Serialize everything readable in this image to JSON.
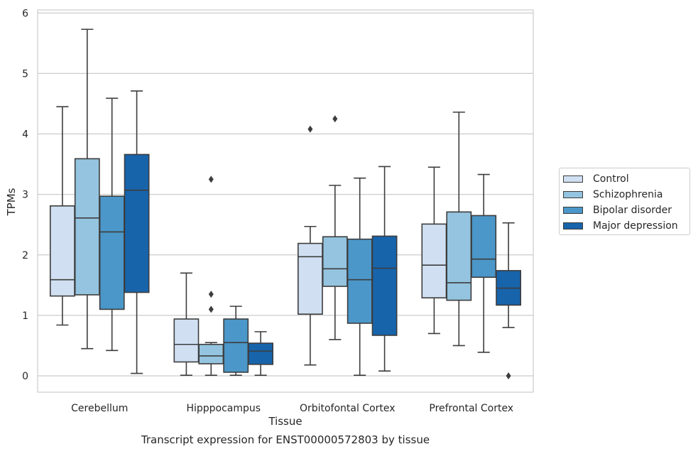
{
  "chart_data": {
    "type": "box",
    "caption": "Transcript expression for ENST00000572803 by tissue",
    "xlabel": "Tissue",
    "ylabel": "TPMs",
    "ylim": [
      -0.27,
      6.05
    ],
    "yticks": [
      0,
      1,
      2,
      3,
      4,
      5,
      6
    ],
    "grid": true,
    "legend_position": "right",
    "categories": [
      "Cerebellum",
      "Hipppocampus",
      "Orbitofontal Cortex",
      "Prefrontal Cortex"
    ],
    "series": [
      {
        "name": "Control",
        "color": "#d0e0f2",
        "boxes": [
          {
            "whisker_low": 0.84,
            "q1": 1.32,
            "median": 1.59,
            "q3": 2.81,
            "whisker_high": 4.45,
            "outliers": []
          },
          {
            "whisker_low": 0.01,
            "q1": 0.23,
            "median": 0.52,
            "q3": 0.94,
            "whisker_high": 1.7,
            "outliers": []
          },
          {
            "whisker_low": 0.18,
            "q1": 1.02,
            "median": 1.97,
            "q3": 2.19,
            "whisker_high": 2.47,
            "outliers": [
              4.08
            ]
          },
          {
            "whisker_low": 0.7,
            "q1": 1.29,
            "median": 1.83,
            "q3": 2.51,
            "whisker_high": 3.45,
            "outliers": []
          }
        ]
      },
      {
        "name": "Schizophrenia",
        "color": "#94c4df",
        "boxes": [
          {
            "whisker_low": 0.45,
            "q1": 1.34,
            "median": 2.61,
            "q3": 3.59,
            "whisker_high": 5.73,
            "outliers": []
          },
          {
            "whisker_low": 0.01,
            "q1": 0.2,
            "median": 0.33,
            "q3": 0.52,
            "whisker_high": 0.55,
            "outliers": [
              1.35,
              1.1,
              3.25
            ]
          },
          {
            "whisker_low": 0.6,
            "q1": 1.48,
            "median": 1.77,
            "q3": 2.3,
            "whisker_high": 3.15,
            "outliers": [
              4.25
            ]
          },
          {
            "whisker_low": 0.5,
            "q1": 1.25,
            "median": 1.54,
            "q3": 2.71,
            "whisker_high": 4.36,
            "outliers": []
          }
        ]
      },
      {
        "name": "Bipolar disorder",
        "color": "#4b97c9",
        "boxes": [
          {
            "whisker_low": 0.42,
            "q1": 1.1,
            "median": 2.38,
            "q3": 2.97,
            "whisker_high": 4.59,
            "outliers": []
          },
          {
            "whisker_low": 0.01,
            "q1": 0.06,
            "median": 0.55,
            "q3": 0.94,
            "whisker_high": 1.15,
            "outliers": []
          },
          {
            "whisker_low": 0.01,
            "q1": 0.87,
            "median": 1.59,
            "q3": 2.26,
            "whisker_high": 3.27,
            "outliers": []
          },
          {
            "whisker_low": 0.39,
            "q1": 1.63,
            "median": 1.93,
            "q3": 2.65,
            "whisker_high": 3.33,
            "outliers": []
          }
        ]
      },
      {
        "name": "Major depression",
        "color": "#1764ab",
        "boxes": [
          {
            "whisker_low": 0.04,
            "q1": 1.38,
            "median": 3.07,
            "q3": 3.66,
            "whisker_high": 4.71,
            "outliers": []
          },
          {
            "whisker_low": 0.01,
            "q1": 0.19,
            "median": 0.41,
            "q3": 0.54,
            "whisker_high": 0.73,
            "outliers": []
          },
          {
            "whisker_low": 0.08,
            "q1": 0.67,
            "median": 1.78,
            "q3": 2.31,
            "whisker_high": 3.46,
            "outliers": []
          },
          {
            "whisker_low": 0.8,
            "q1": 1.17,
            "median": 1.45,
            "q3": 1.74,
            "whisker_high": 2.53,
            "outliers": [
              0.0
            ]
          }
        ]
      }
    ]
  }
}
